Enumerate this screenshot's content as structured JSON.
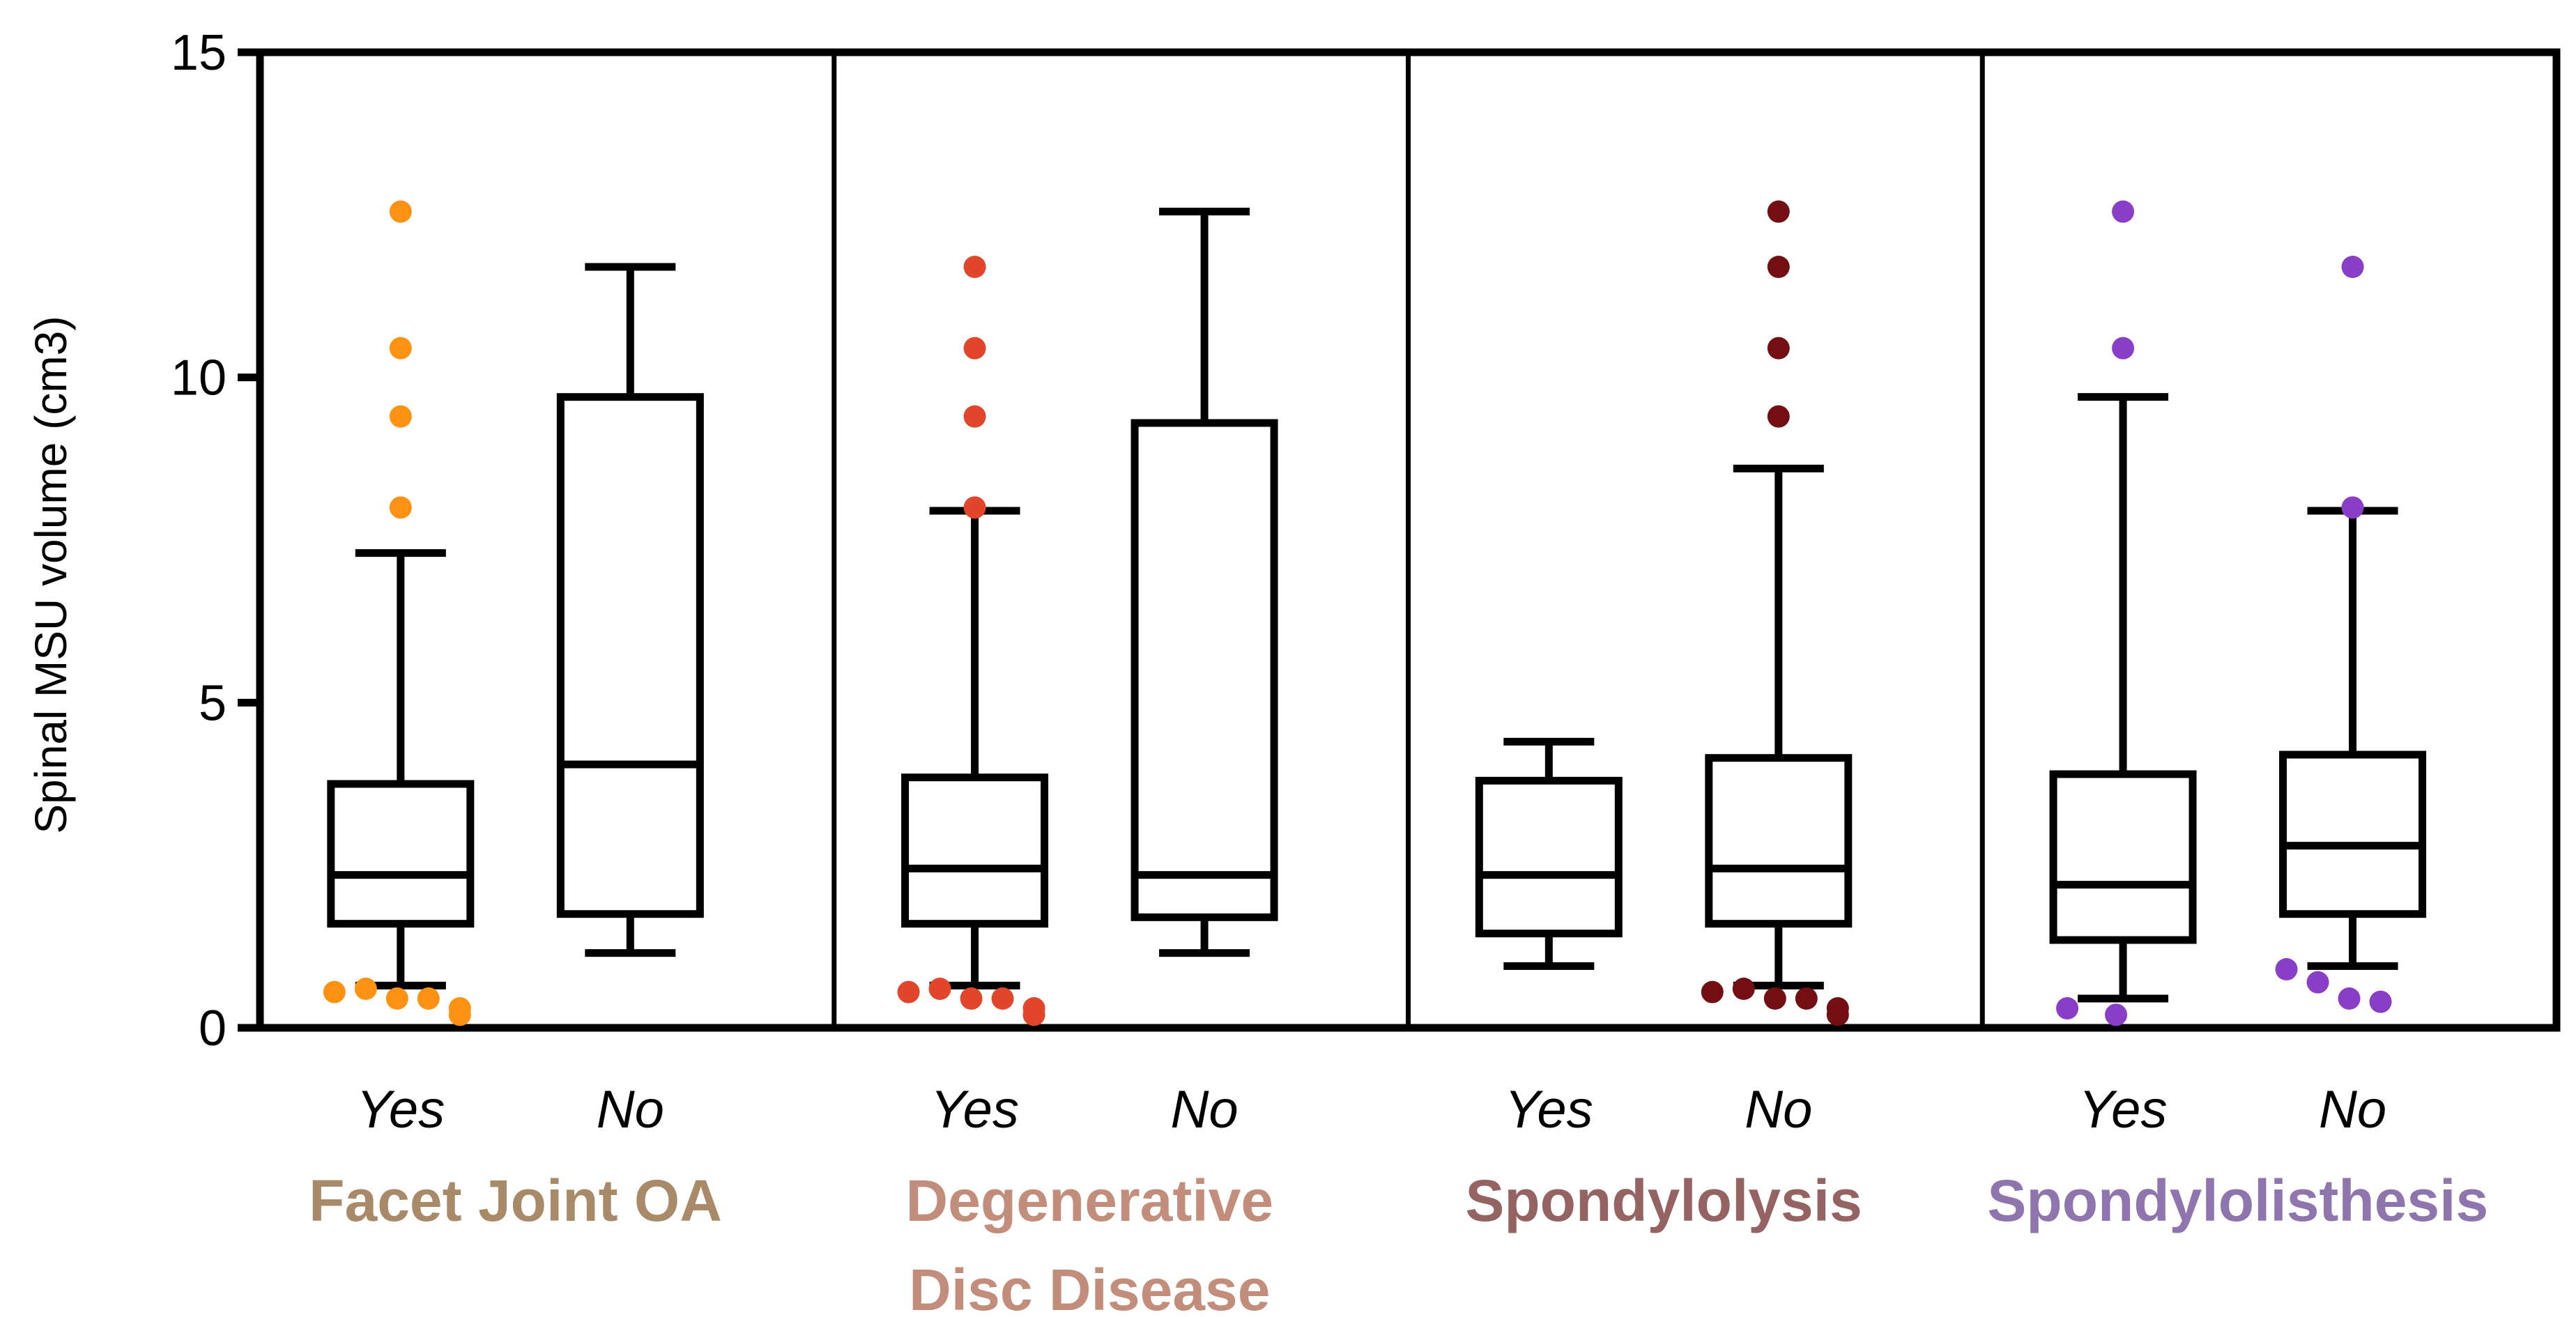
{
  "chart_data": {
    "type": "box",
    "ylabel": "Spinal MSU volume (cm3)",
    "ylim": [
      0,
      15
    ],
    "yticks": [
      0,
      5,
      10,
      15
    ],
    "categories": [
      {
        "name": "facet-joint-oa",
        "label_lines": [
          "Facet Joint OA"
        ],
        "label_color": "#a98a68",
        "point_color": "#ff9212",
        "groups": [
          {
            "label": "Yes",
            "min": 0.65,
            "q1": 1.6,
            "median": 2.35,
            "q3": 3.75,
            "max": 7.3,
            "outliers": [
              12.55,
              10.45,
              9.4,
              8.0,
              0.55,
              0.6,
              0.45,
              0.45,
              0.3,
              0.2
            ]
          },
          {
            "label": "No",
            "min": 1.15,
            "q1": 1.75,
            "median": 4.05,
            "q3": 9.7,
            "max": 11.7,
            "outliers": []
          }
        ]
      },
      {
        "name": "degenerative-disc-disease",
        "label_lines": [
          "Degenerative",
          "Disc Disease"
        ],
        "label_color": "#c28d7a",
        "point_color": "#e2462a",
        "groups": [
          {
            "label": "Yes",
            "min": 0.65,
            "q1": 1.6,
            "median": 2.45,
            "q3": 3.85,
            "max": 7.95,
            "outliers": [
              11.7,
              10.45,
              9.4,
              8.0,
              0.55,
              0.6,
              0.45,
              0.45,
              0.3,
              0.2
            ]
          },
          {
            "label": "No",
            "min": 1.15,
            "q1": 1.7,
            "median": 2.35,
            "q3": 9.3,
            "max": 12.55,
            "outliers": []
          }
        ]
      },
      {
        "name": "spondylolysis",
        "label_lines": [
          "Spondylolysis"
        ],
        "label_color": "#946362",
        "point_color": "#730e12",
        "groups": [
          {
            "label": "Yes",
            "min": 0.95,
            "q1": 1.45,
            "median": 2.35,
            "q3": 3.8,
            "max": 4.4,
            "outliers": []
          },
          {
            "label": "No",
            "min": 0.65,
            "q1": 1.6,
            "median": 2.45,
            "q3": 4.15,
            "max": 8.6,
            "outliers": [
              12.55,
              11.7,
              10.45,
              9.4,
              0.55,
              0.6,
              0.45,
              0.45,
              0.3,
              0.2
            ]
          }
        ]
      },
      {
        "name": "spondylolisthesis",
        "label_lines": [
          "Spondylolisthesis"
        ],
        "label_color": "#8f75ae",
        "point_color": "#8a3ec8",
        "groups": [
          {
            "label": "Yes",
            "min": 0.45,
            "q1": 1.35,
            "median": 2.2,
            "q3": 3.9,
            "max": 9.7,
            "outliers": [
              12.55,
              10.45,
              0.3,
              0.2
            ]
          },
          {
            "label": "No",
            "min": 0.95,
            "q1": 1.75,
            "median": 2.8,
            "q3": 4.2,
            "max": 7.95,
            "outliers": [
              11.7,
              8.0,
              0.9,
              0.7,
              0.45,
              0.4
            ]
          }
        ]
      }
    ]
  }
}
